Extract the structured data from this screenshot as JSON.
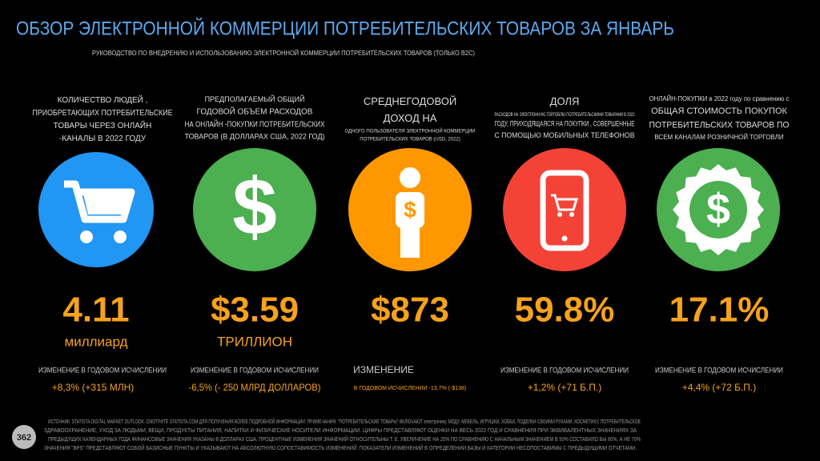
{
  "header": {
    "title": "ОБЗОР ЭЛЕКТРОННОЙ КОММЕРЦИИ ПОТРЕБИТЕЛЬСКИХ ТОВАРОВ ЗА ЯНВАРЬ",
    "subtitle": "РУКОВОДСТВО ПО ВНЕДРЕНИЮ И ИСПОЛЬЗОВАНИЮ ЭЛЕКТРОННОЙ КОММЕРЦИИ ПОТРЕБИТЕЛЬСКИХ ТОВАРОВ (ТОЛЬКО B2C)"
  },
  "panels": [
    {
      "description": [
        "КОЛИЧЕСТВО ЛЮДЕЙ ,",
        "ПРИОБРЕТАЮЩИХ ПОТРЕБИТЕЛЬСКИЕ",
        "ТОВАРЫ ЧЕРЕЗ ОНЛАЙН",
        "-КАНАЛЫ В 2022 ГОДУ"
      ],
      "value": "4.11",
      "unit": "миллиард",
      "change_label": "ИЗМЕНЕНИЕ В ГОДОВОМ ИСЧИСЛЕНИИ",
      "change": "+8,3% (+315 МЛН)"
    },
    {
      "description": [
        "ПРЕДПОЛАГАЕМЫЙ ОБЩИЙ",
        "ГОДОВОЙ ОБЪЕМ РАСХОДОВ",
        "НА ОНЛАЙН -ПОКУПКИ ПОТРЕБИТЕЛЬСКИХ",
        "ТОВАРОВ (В ДОЛЛАРАХ США, 2022 ГОД)"
      ],
      "value": "$3.59",
      "unit": "ТРИЛЛИОН",
      "change_label": "ИЗМЕНЕНИЕ В ГОДОВОМ ИСЧИСЛЕНИИ",
      "change": "-6,5% (- 250 МЛРД ДОЛЛАРОВ)"
    },
    {
      "description": [
        "СРЕДНЕГОДОВОЙ",
        "ДОХОД НА",
        "ОДНОГО ПОЛЬЗОВАТЕЛЯ ЭЛЕКТРОННОЙ КОММЕРЦИИ",
        "ПОТРЕБИТЕЛЬСКИХ ТОВАРОВ (USD, 2022)"
      ],
      "value": "$873",
      "change_label": "ИЗМЕНЕНИЕ",
      "change": "В ГОДОВОМ ИСЧИСЛЕНИИ -13,7% (-$138)"
    },
    {
      "description": [
        "ДОЛЯ",
        "РАСХОДОВ НА ЭЛЕКТРОННУЮ ТОРГОВЛЮ ПОТРЕБИТЕЛЬСКИМИ ТОВАРАМИ В 2022",
        "ГОДУ, ПРИХОДЯЩАЯСЯ НА ПОКУПКИ , СОВЕРШЕННЫЕ",
        "С ПОМОЩЬЮ МОБИЛЬНЫХ ТЕЛЕФОНОВ"
      ],
      "value": "59.8%",
      "change_label": "ИЗМЕНЕНИЕ В ГОДОВОМ ИСЧИСЛЕНИИ",
      "change": "+1,2% (+71 Б.П.)"
    },
    {
      "description": [
        "ОНЛАЙН-ПОКУПКИ в 2022 году по сравнению с",
        "ОБЩАЯ СТОИМОСТЬ ПОКУПОК",
        "ПОТРЕБИТЕЛЬСКИХ ТОВАРОВ ПО",
        "ВСЕМ КАНАЛАМ РОЗНИЧНОЙ ТОРГОВЛИ"
      ],
      "value": "17.1%",
      "change_label": "ИЗМЕНЕНИЕ В ГОДОВОМ ИСЧИСЛЕНИИ",
      "change": "+4,4% (+72 Б.П.)"
    }
  ],
  "footer": {
    "page": "362",
    "note": [
      "ИСТОЧНИК: STATISTA DIGITAL MARKET OUTLOOK. СМОТРИТЕ STATISTA.COM ДЛЯ ПОЛУЧЕНИЯ БОЛЕЕ ПОДРОБНОЙ ИНФОРМАЦИИ. ПРИМЕЧАНИЯ: \"ПОТРЕБИТЕЛЬСКИЕ ТОВАРЫ\" ВКЛЮЧАЮТ электронику, МОДУ, МЕБЕЛЬ, ИГРУШКИ, ХОББИ, ПОДЕЛКИ СВОИМИ РУКАМИ, КОСМЕТИКУ, ПОТРЕБИТЕЛЬСКОЕ",
      "ЗДРАВООХРАНЕНИЕ, УХОД ЗА ЛЮДЬМИ, ВЕЩИ, ПРОДУКТЫ ПИТАНИЯ, НАПИТКИ И ФИЗИЧЕСКИЕ НОСИТЕЛИ ИНФОРМАЦИИ. ЦИФРЫ ПРЕДСТАВЛЯЮТ ОЦЕНКИ НА ВЕСЬ 2022 ГОД И СРАВНЕНИЯ ПРИ ЭКВИВАЛЕНТНЫХ ЗНАЧЕНИЯХ ЗА",
      "ПРЕДЫДУЩИХ КАЛЕНДАРНЫХ ГОДА ФИНАНСОВЫЕ ЗНАЧЕНИЯ УКАЗАНЫ В ДОЛЛАРАХ США. ПРОЦЕНТНЫЕ ИЗМЕНЕНИЯ ЗНАЧЕНИЙ ОТНОСИТЕЛЬНЫ Т. Е. УВЕЛИЧЕНИЕ НА 20% ПО СРАВНЕНИЮ С НАЧАЛЬНЫМ ЗНАЧЕНИЕМ В 50% СОСТАВИЛО БЫ 60%, А НЕ 70%",
      "ЗНАЧЕНИЯ \"BPS\" ПРЕДСТАВЛЯЮТ СОБОЙ БАЗИСНЫЕ ПУНКТЫ И УКАЗЫВАЮТ НА АБСОЛЮТНУЮ СОПОСТАВИМОСТЬ ИЗМЕНЕНИЙ. ПОКАЗАТЕЛИ ИЗМЕНЕНИЙ В ОПРЕДЕЛЕНИИ БАЗЫ И КАТЕГОРИИ НЕСОПОСТАВИМЫ С ПРЕДЫДУЩИМИ ОТЧЕТАМИ."
    ]
  }
}
